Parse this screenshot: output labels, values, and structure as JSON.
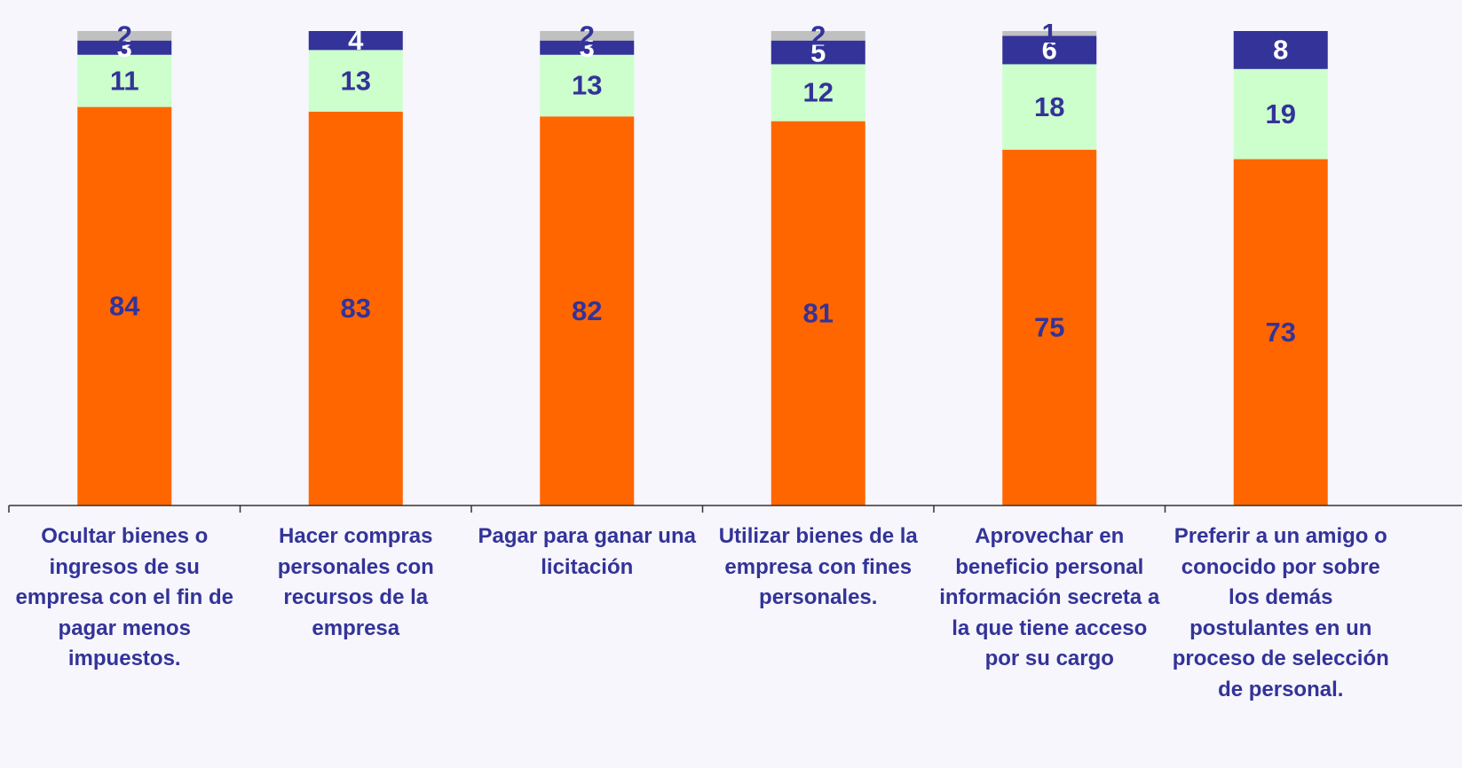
{
  "chart_data": {
    "type": "stacked_bar",
    "categories": [
      "Ocultar bienes o ingresos de su empresa con el fin de pagar menos impuestos.",
      "Hacer compras personales con recursos de la empresa",
      "Pagar para ganar una licitación",
      "Utilizar bienes de la empresa con fines personales.",
      "Aprovechar en beneficio personal información secreta a la que tiene acceso por su cargo",
      "Preferir a un amigo o conocido por sobre los demás postulantes en un proceso de selección de personal."
    ],
    "series": [
      {
        "color": "#ff6600",
        "values": [
          84,
          83,
          82,
          81,
          75,
          73
        ]
      },
      {
        "color": "#ccffcc",
        "values": [
          11,
          13,
          13,
          12,
          18,
          19
        ]
      },
      {
        "color": "#333399",
        "values": [
          3,
          4,
          3,
          5,
          6,
          8
        ]
      },
      {
        "color": "#c0c0c0",
        "values": [
          2,
          null,
          2,
          2,
          1,
          null
        ]
      }
    ],
    "ylim": [
      0,
      100
    ]
  }
}
